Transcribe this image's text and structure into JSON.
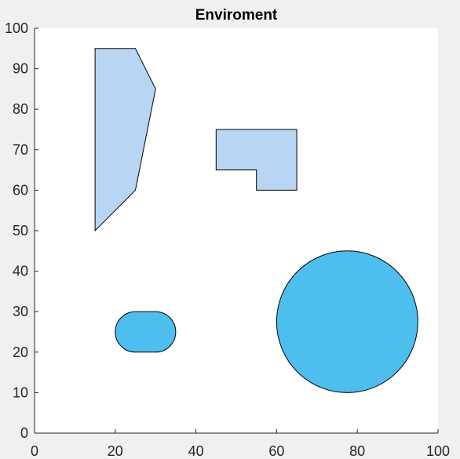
{
  "chart_data": {
    "type": "scatter",
    "title": "Enviroment",
    "xlabel": "",
    "ylabel": "",
    "xlim": [
      0,
      100
    ],
    "ylim": [
      0,
      100
    ],
    "xticks": [
      "0",
      "20",
      "40",
      "60",
      "80",
      "100"
    ],
    "yticks": [
      "0",
      "10",
      "20",
      "30",
      "40",
      "50",
      "60",
      "70",
      "80",
      "90",
      "100"
    ],
    "grid": false,
    "legend": "none",
    "obstacles": [
      {
        "kind": "polygon",
        "points": [
          [
            15,
            50
          ],
          [
            15,
            95
          ],
          [
            25,
            95
          ],
          [
            30,
            85
          ],
          [
            25,
            60
          ]
        ],
        "fill": "#b8d6f3"
      },
      {
        "kind": "polygon",
        "points": [
          [
            45,
            75
          ],
          [
            65,
            75
          ],
          [
            65,
            60
          ],
          [
            55,
            60
          ],
          [
            55,
            65
          ],
          [
            45,
            65
          ]
        ],
        "fill": "#b8d6f3"
      },
      {
        "kind": "stadium",
        "x_start": 25,
        "x_end": 30,
        "y_center": 25,
        "radius": 5,
        "fill": "#4dbeee"
      },
      {
        "kind": "circle",
        "center": [
          77.5,
          27.5
        ],
        "radius": 17.5,
        "fill": "#4dbeee"
      }
    ]
  }
}
